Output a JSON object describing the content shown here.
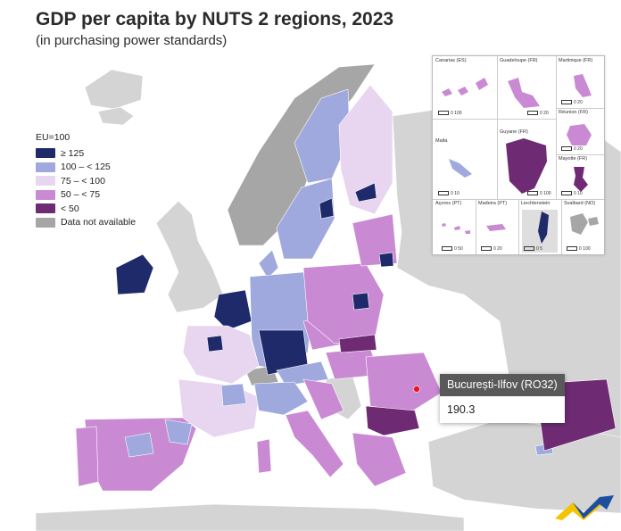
{
  "header": {
    "title": "GDP per capita by NUTS 2 regions, 2023",
    "subtitle": "(in purchasing power standards)"
  },
  "legend": {
    "title": "EU=100",
    "items": [
      {
        "label": "≥ 125",
        "color": "#1f2a6b"
      },
      {
        "label": "100 – < 125",
        "color": "#9fa9dd"
      },
      {
        "label": "75 – < 100",
        "color": "#e8d5ef"
      },
      {
        "label": "50 – < 75",
        "color": "#c98ad3"
      },
      {
        "label": "< 50",
        "color": "#6e2a73"
      },
      {
        "label": "Data not available",
        "color": "#a6a6a6"
      }
    ]
  },
  "insets": [
    {
      "name": "Canarias (ES)",
      "scale": "0   100"
    },
    {
      "name": "Guadeloupe (FR)",
      "scale": "0   20"
    },
    {
      "name": "Martinique (FR)",
      "scale": "0   20"
    },
    {
      "name": "Réunion (FR)",
      "scale": "0   20"
    },
    {
      "name": "Malta",
      "scale": "0   10"
    },
    {
      "name": "Guyane (FR)",
      "scale": "0   100"
    },
    {
      "name": "Mayotte (FR)",
      "scale": "0   10"
    },
    {
      "name": "Açores (PT)",
      "scale": "0   50"
    },
    {
      "name": "Madeira (PT)",
      "scale": "0   20"
    },
    {
      "name": "Liechtenstein",
      "scale": "0   5"
    },
    {
      "name": "Svalbard (NO)",
      "scale": "0   100"
    }
  ],
  "tooltip": {
    "region": "București-Ilfov (RO32)",
    "value": "190.3"
  },
  "colors": {
    "sea": "#ffffff",
    "non_eu_land": "#d4d4d4",
    "not_available": "#a6a6a6",
    "border": "#ffffff",
    "selected_region": "#e8141f",
    "logo_blue": "#1d4fa0",
    "logo_yellow": "#f5c400"
  }
}
